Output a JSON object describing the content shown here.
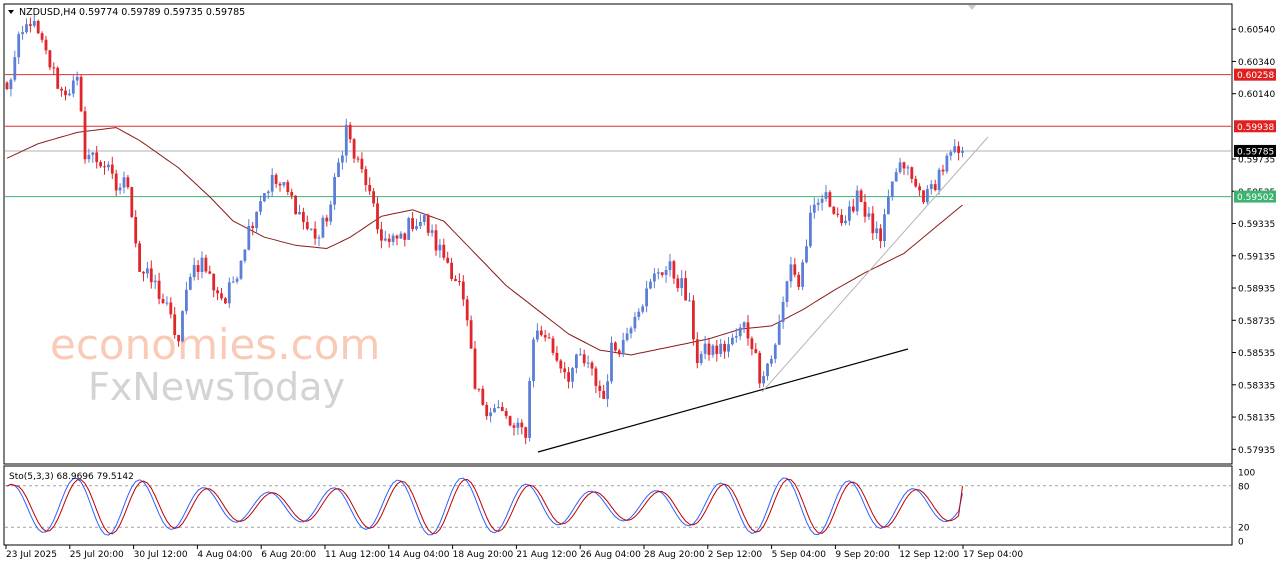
{
  "header": {
    "symbol_label": "NZDUSD,H4",
    "ohlc_label": "0.59774 0.59789 0.59735 0.59785"
  },
  "oscillator": {
    "label": "Sto(5,3,3) 68.9696 79.5142",
    "scale_ticks": [
      "100",
      "80",
      "20",
      "0"
    ],
    "levels": [
      80,
      20
    ],
    "main_color": "#3060ff",
    "signal_color": "#c00000"
  },
  "watermark": {
    "line1": "economies.com",
    "line2": "FxNewsToday"
  },
  "colors": {
    "bull": "#5b7fd6",
    "bear": "#e0262b",
    "ma": "#8b1a1a",
    "resistance": "#e03030",
    "support": "#3cb371",
    "price_line": "#b0b0b0",
    "trendline": "#000000",
    "channel_line": "#b4b4b4"
  },
  "price_labels": [
    {
      "text": "0.60258",
      "value": 0.60258,
      "color": "#e02020"
    },
    {
      "text": "0.59938",
      "value": 0.59938,
      "color": "#e02020"
    },
    {
      "text": "0.59785",
      "value": 0.59785,
      "color": "#000000"
    },
    {
      "text": "0.59502",
      "value": 0.59502,
      "color": "#3cb371"
    }
  ],
  "chart_data": {
    "type": "candlestick",
    "symbol": "NZDUSD",
    "timeframe": "H4",
    "ylim": [
      0.5785,
      0.6069
    ],
    "y_ticks": [
      "0.60540",
      "0.60340",
      "0.60140",
      "0.59735",
      "0.59535",
      "0.59335",
      "0.59135",
      "0.58935",
      "0.58735",
      "0.58535",
      "0.58335",
      "0.58135",
      "0.57935"
    ],
    "x_ticks": [
      "23 Jul 2025",
      "25 Jul 20:00",
      "30 Jul 12:00",
      "4 Aug 04:00",
      "6 Aug 20:00",
      "11 Aug 12:00",
      "14 Aug 04:00",
      "18 Aug 20:00",
      "21 Aug 12:00",
      "26 Aug 04:00",
      "28 Aug 20:00",
      "2 Sep 12:00",
      "5 Sep 04:00",
      "9 Sep 20:00",
      "12 Sep 12:00",
      "17 Sep 04:00"
    ],
    "horizontal_lines": [
      0.60258,
      0.59938,
      0.59785,
      0.59502
    ],
    "trendline_support": {
      "from": 0.5796,
      "to": 0.5862
    },
    "trendline_channel": {
      "from": 0.5837,
      "to": 0.5996
    },
    "path_knots": [
      [
        0,
        0.6015
      ],
      [
        3,
        0.6045
      ],
      [
        6,
        0.606
      ],
      [
        10,
        0.6038
      ],
      [
        14,
        0.6015
      ],
      [
        18,
        0.602
      ],
      [
        20,
        0.5978
      ],
      [
        25,
        0.597
      ],
      [
        28,
        0.5955
      ],
      [
        31,
        0.596
      ],
      [
        34,
        0.5905
      ],
      [
        38,
        0.5895
      ],
      [
        41,
        0.588
      ],
      [
        44,
        0.586
      ],
      [
        47,
        0.5905
      ],
      [
        50,
        0.591
      ],
      [
        53,
        0.5895
      ],
      [
        56,
        0.5885
      ],
      [
        59,
        0.5905
      ],
      [
        62,
        0.593
      ],
      [
        65,
        0.595
      ],
      [
        68,
        0.596
      ],
      [
        71,
        0.5955
      ],
      [
        74,
        0.5945
      ],
      [
        77,
        0.593
      ],
      [
        80,
        0.5925
      ],
      [
        83,
        0.5945
      ],
      [
        85,
        0.597
      ],
      [
        87,
        0.5993
      ],
      [
        89,
        0.5975
      ],
      [
        92,
        0.596
      ],
      [
        95,
        0.593
      ],
      [
        98,
        0.592
      ],
      [
        101,
        0.5925
      ],
      [
        104,
        0.5935
      ],
      [
        107,
        0.5935
      ],
      [
        110,
        0.592
      ],
      [
        113,
        0.591
      ],
      [
        116,
        0.5895
      ],
      [
        118,
        0.587
      ],
      [
        120,
        0.583
      ],
      [
        123,
        0.582
      ],
      [
        126,
        0.5818
      ],
      [
        128,
        0.5812
      ],
      [
        130,
        0.5805
      ],
      [
        133,
        0.5805
      ],
      [
        135,
        0.5865
      ],
      [
        138,
        0.5865
      ],
      [
        141,
        0.585
      ],
      [
        144,
        0.584
      ],
      [
        147,
        0.585
      ],
      [
        150,
        0.584
      ],
      [
        153,
        0.5825
      ],
      [
        155,
        0.5855
      ],
      [
        158,
        0.586
      ],
      [
        161,
        0.588
      ],
      [
        164,
        0.589
      ],
      [
        167,
        0.5905
      ],
      [
        170,
        0.5905
      ],
      [
        173,
        0.5895
      ],
      [
        175,
        0.588
      ],
      [
        177,
        0.585
      ],
      [
        180,
        0.5855
      ],
      [
        183,
        0.5855
      ],
      [
        186,
        0.586
      ],
      [
        189,
        0.587
      ],
      [
        191,
        0.586
      ],
      [
        193,
        0.584
      ],
      [
        196,
        0.585
      ],
      [
        198,
        0.587
      ],
      [
        201,
        0.591
      ],
      [
        203,
        0.5895
      ],
      [
        206,
        0.5935
      ],
      [
        209,
        0.595
      ],
      [
        212,
        0.5945
      ],
      [
        215,
        0.593
      ],
      [
        218,
        0.5955
      ],
      [
        221,
        0.5935
      ],
      [
        224,
        0.592
      ],
      [
        227,
        0.596
      ],
      [
        230,
        0.597
      ],
      [
        233,
        0.5955
      ],
      [
        236,
        0.595
      ],
      [
        239,
        0.5965
      ],
      [
        242,
        0.5975
      ],
      [
        245,
        0.5978
      ]
    ],
    "moving_average": [
      [
        0,
        0.5974
      ],
      [
        8,
        0.5983
      ],
      [
        18,
        0.599
      ],
      [
        28,
        0.5993
      ],
      [
        34,
        0.5985
      ],
      [
        44,
        0.5968
      ],
      [
        52,
        0.595
      ],
      [
        58,
        0.5935
      ],
      [
        66,
        0.5925
      ],
      [
        74,
        0.592
      ],
      [
        82,
        0.5918
      ],
      [
        88,
        0.5925
      ],
      [
        96,
        0.5938
      ],
      [
        104,
        0.5942
      ],
      [
        112,
        0.5935
      ],
      [
        120,
        0.5915
      ],
      [
        128,
        0.5895
      ],
      [
        136,
        0.588
      ],
      [
        144,
        0.5865
      ],
      [
        152,
        0.5855
      ],
      [
        160,
        0.5852
      ],
      [
        170,
        0.5857
      ],
      [
        180,
        0.5862
      ],
      [
        188,
        0.5868
      ],
      [
        196,
        0.587
      ],
      [
        204,
        0.588
      ],
      [
        212,
        0.5892
      ],
      [
        220,
        0.5903
      ],
      [
        230,
        0.5915
      ],
      [
        240,
        0.5935
      ],
      [
        245,
        0.5945
      ]
    ]
  }
}
